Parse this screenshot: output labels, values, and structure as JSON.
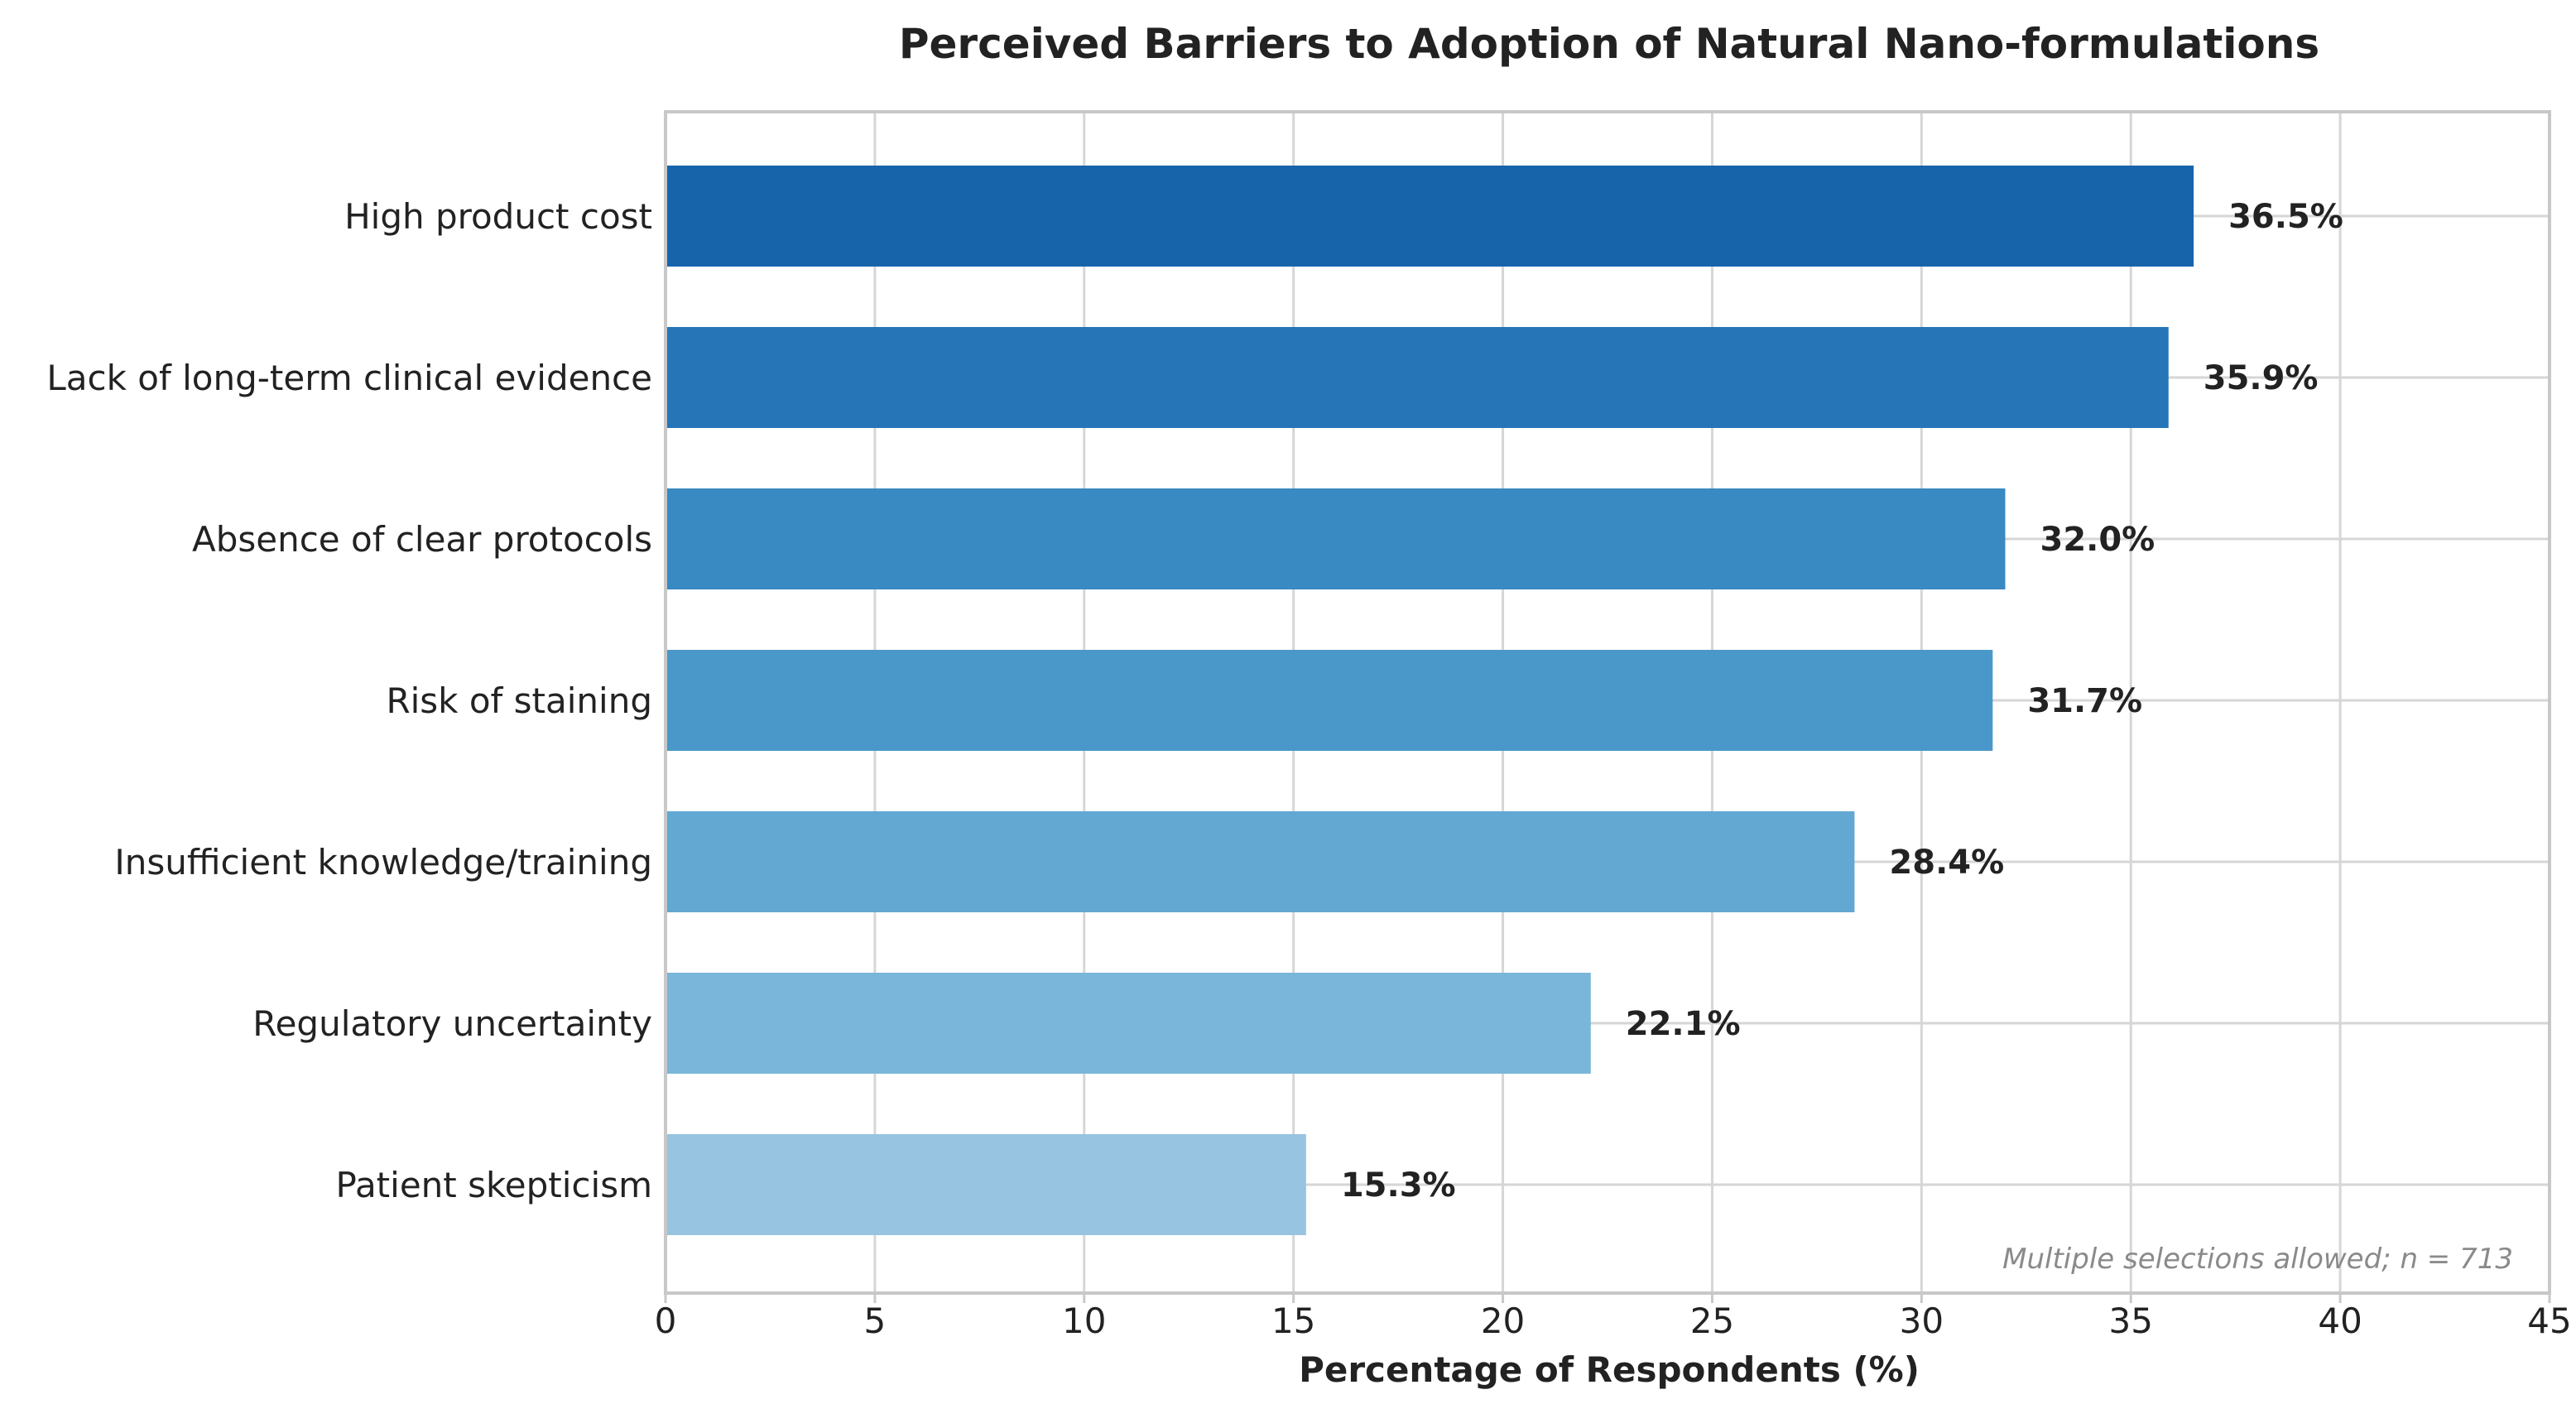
{
  "chart_data": {
    "type": "bar",
    "orientation": "horizontal",
    "title": "Perceived Barriers to Adoption of Natural Nano-formulations",
    "xlabel": "Percentage of Respondents (%)",
    "ylabel": "",
    "xlim": [
      0,
      45
    ],
    "xticks": [
      0,
      5,
      10,
      15,
      20,
      25,
      30,
      35,
      40,
      45
    ],
    "grid": true,
    "categories": [
      "High product cost",
      "Lack of long-term clinical evidence",
      "Absence of clear protocols",
      "Risk of staining",
      "Insufficient knowledge/training",
      "Regulatory uncertainty",
      "Patient skepticism"
    ],
    "values": [
      36.5,
      35.9,
      32.0,
      31.7,
      28.4,
      22.1,
      15.3
    ],
    "value_labels": [
      "36.5%",
      "35.9%",
      "32.0%",
      "31.7%",
      "28.4%",
      "22.1%",
      "15.3%"
    ],
    "bar_colors": [
      "#1764AB",
      "#2575B7",
      "#3989C2",
      "#4A98C9",
      "#62A8D2",
      "#7AB6D9",
      "#97C4E0"
    ],
    "annotation": "Multiple selections allowed; n = 713"
  }
}
